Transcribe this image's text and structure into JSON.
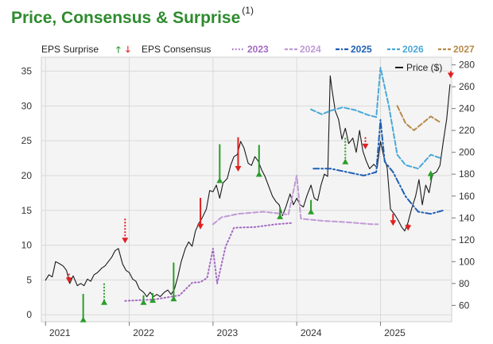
{
  "title": "Price, Consensus & Surprise",
  "title_note": "(1)",
  "colors": {
    "title": "#2e8b2e",
    "price": "#1a1a1a",
    "surprise_up": "#2a9d2a",
    "surprise_down": "#e02020",
    "c2023": "#a36ac2",
    "c2024": "#c09ad6",
    "c2025": "#1f5fb4",
    "c2026": "#4aa8d8",
    "c2027": "#b88a4a",
    "plot_bg": "#f4f4f4",
    "grid": "#d9d9d9"
  },
  "chart_data": {
    "type": "line",
    "x_tick_labels": [
      "2021",
      "2022",
      "2023",
      "2024",
      "2025"
    ],
    "left_axis": {
      "ylim": [
        -1,
        37
      ],
      "ticks": [
        "0",
        "5",
        "10",
        "15",
        "20",
        "25",
        "30",
        "35"
      ]
    },
    "right_axis": {
      "label": "Price ($)",
      "ylim": [
        45,
        287
      ],
      "ticks": [
        "60",
        "80",
        "100",
        "120",
        "140",
        "160",
        "180",
        "200",
        "220",
        "240",
        "260",
        "280"
      ]
    },
    "xlim": [
      2020.95,
      2025.85
    ],
    "legend": {
      "surprise_label": "EPS Surprise",
      "consensus_label": "EPS Consensus",
      "up_glyph": "🡑",
      "down_glyph": "🡓",
      "price_label": "Price ($)",
      "position": "top"
    },
    "grid": true,
    "series": [
      {
        "name": "Price ($)",
        "axis": "right",
        "style": "solid",
        "color_key": "price",
        "points": [
          [
            2021.0,
            83
          ],
          [
            2021.04,
            88
          ],
          [
            2021.08,
            86
          ],
          [
            2021.12,
            100
          ],
          [
            2021.17,
            98
          ],
          [
            2021.21,
            96
          ],
          [
            2021.25,
            92
          ],
          [
            2021.29,
            80
          ],
          [
            2021.33,
            87
          ],
          [
            2021.38,
            78
          ],
          [
            2021.42,
            80
          ],
          [
            2021.46,
            78
          ],
          [
            2021.5,
            84
          ],
          [
            2021.54,
            82
          ],
          [
            2021.58,
            88
          ],
          [
            2021.62,
            90
          ],
          [
            2021.67,
            94
          ],
          [
            2021.71,
            96
          ],
          [
            2021.75,
            100
          ],
          [
            2021.79,
            104
          ],
          [
            2021.83,
            110
          ],
          [
            2021.87,
            112
          ],
          [
            2021.92,
            98
          ],
          [
            2021.96,
            92
          ],
          [
            2022.0,
            90
          ],
          [
            2022.04,
            84
          ],
          [
            2022.08,
            82
          ],
          [
            2022.12,
            75
          ],
          [
            2022.17,
            72
          ],
          [
            2022.21,
            68
          ],
          [
            2022.25,
            72
          ],
          [
            2022.29,
            68
          ],
          [
            2022.33,
            70
          ],
          [
            2022.37,
            68
          ],
          [
            2022.42,
            72
          ],
          [
            2022.46,
            74
          ],
          [
            2022.5,
            70
          ],
          [
            2022.54,
            75
          ],
          [
            2022.58,
            86
          ],
          [
            2022.62,
            100
          ],
          [
            2022.67,
            112
          ],
          [
            2022.71,
            118
          ],
          [
            2022.75,
            114
          ],
          [
            2022.79,
            128
          ],
          [
            2022.83,
            135
          ],
          [
            2022.87,
            140
          ],
          [
            2022.92,
            148
          ],
          [
            2022.96,
            165
          ],
          [
            2023.0,
            164
          ],
          [
            2023.04,
            170
          ],
          [
            2023.08,
            158
          ],
          [
            2023.12,
            172
          ],
          [
            2023.17,
            176
          ],
          [
            2023.21,
            188
          ],
          [
            2023.25,
            196
          ],
          [
            2023.29,
            198
          ],
          [
            2023.33,
            210
          ],
          [
            2023.37,
            204
          ],
          [
            2023.42,
            190
          ],
          [
            2023.46,
            188
          ],
          [
            2023.5,
            196
          ],
          [
            2023.54,
            192
          ],
          [
            2023.58,
            184
          ],
          [
            2023.62,
            178
          ],
          [
            2023.67,
            168
          ],
          [
            2023.71,
            160
          ],
          [
            2023.75,
            155
          ],
          [
            2023.79,
            152
          ],
          [
            2023.83,
            142
          ],
          [
            2023.87,
            150
          ],
          [
            2023.92,
            162
          ],
          [
            2023.96,
            152
          ],
          [
            2024.0,
            158
          ],
          [
            2024.04,
            152
          ],
          [
            2024.08,
            150
          ],
          [
            2024.12,
            160
          ],
          [
            2024.17,
            170
          ],
          [
            2024.21,
            158
          ],
          [
            2024.25,
            156
          ],
          [
            2024.29,
            170
          ],
          [
            2024.33,
            180
          ],
          [
            2024.37,
            178
          ],
          [
            2024.4,
            270
          ],
          [
            2024.42,
            258
          ],
          [
            2024.46,
            238
          ],
          [
            2024.5,
            230
          ],
          [
            2024.54,
            212
          ],
          [
            2024.58,
            222
          ],
          [
            2024.62,
            208
          ],
          [
            2024.67,
            213
          ],
          [
            2024.71,
            200
          ],
          [
            2024.75,
            220
          ],
          [
            2024.79,
            201
          ],
          [
            2024.83,
            192
          ],
          [
            2024.87,
            185
          ],
          [
            2024.92,
            189
          ],
          [
            2024.96,
            186
          ],
          [
            2025.0,
            210
          ],
          [
            2025.04,
            196
          ],
          [
            2025.08,
            186
          ],
          [
            2025.12,
            148
          ],
          [
            2025.17,
            143
          ],
          [
            2025.21,
            138
          ],
          [
            2025.25,
            132
          ],
          [
            2025.29,
            128
          ],
          [
            2025.33,
            136
          ],
          [
            2025.37,
            148
          ],
          [
            2025.42,
            160
          ],
          [
            2025.46,
            175
          ],
          [
            2025.5,
            152
          ],
          [
            2025.54,
            170
          ],
          [
            2025.58,
            163
          ],
          [
            2025.62,
            180
          ],
          [
            2025.67,
            182
          ],
          [
            2025.71,
            188
          ],
          [
            2025.75,
            210
          ],
          [
            2025.79,
            230
          ],
          [
            2025.83,
            262
          ]
        ]
      },
      {
        "name": "2023",
        "axis": "left",
        "style": "dotted",
        "color_key": "c2023",
        "points": [
          [
            2021.95,
            2
          ],
          [
            2022.3,
            2.2
          ],
          [
            2022.6,
            2.8
          ],
          [
            2022.75,
            4.6
          ],
          [
            2022.85,
            4.7
          ],
          [
            2022.93,
            5.3
          ],
          [
            2023.0,
            9.5
          ],
          [
            2023.05,
            4.5
          ],
          [
            2023.15,
            9.8
          ],
          [
            2023.25,
            12.5
          ],
          [
            2023.5,
            12.6
          ],
          [
            2023.75,
            13
          ],
          [
            2023.95,
            13.2
          ]
        ]
      },
      {
        "name": "2024",
        "axis": "left",
        "style": "dashed",
        "color_key": "c2024",
        "points": [
          [
            2023.0,
            13
          ],
          [
            2023.1,
            14
          ],
          [
            2023.3,
            14.5
          ],
          [
            2023.6,
            14.8
          ],
          [
            2023.9,
            14.4
          ],
          [
            2024.0,
            20
          ],
          [
            2024.05,
            13.8
          ],
          [
            2024.3,
            13.5
          ],
          [
            2024.6,
            13.3
          ],
          [
            2024.9,
            13
          ],
          [
            2024.97,
            13
          ]
        ]
      },
      {
        "name": "2025",
        "axis": "left",
        "style": "dashdot",
        "color_key": "c2025",
        "points": [
          [
            2024.2,
            21
          ],
          [
            2024.4,
            21
          ],
          [
            2024.6,
            20.5
          ],
          [
            2024.8,
            20
          ],
          [
            2024.95,
            20.5
          ],
          [
            2025.0,
            28
          ],
          [
            2025.05,
            22
          ],
          [
            2025.15,
            20.5
          ],
          [
            2025.3,
            17
          ],
          [
            2025.45,
            14.8
          ],
          [
            2025.6,
            14.5
          ],
          [
            2025.75,
            15
          ]
        ]
      },
      {
        "name": "2026",
        "axis": "left",
        "style": "dashed",
        "color_key": "c2026",
        "points": [
          [
            2024.17,
            29.5
          ],
          [
            2024.3,
            28.8
          ],
          [
            2024.4,
            29.3
          ],
          [
            2024.55,
            29.8
          ],
          [
            2024.7,
            29.4
          ],
          [
            2024.85,
            28.7
          ],
          [
            2024.95,
            28.4
          ],
          [
            2025.0,
            35.5
          ],
          [
            2025.1,
            30
          ],
          [
            2025.2,
            23
          ],
          [
            2025.3,
            21.5
          ],
          [
            2025.45,
            21
          ],
          [
            2025.6,
            23
          ],
          [
            2025.72,
            22.5
          ]
        ]
      },
      {
        "name": "2027",
        "axis": "left",
        "style": "dashed",
        "color_key": "c2027",
        "points": [
          [
            2025.2,
            30
          ],
          [
            2025.3,
            27.5
          ],
          [
            2025.4,
            26.5
          ],
          [
            2025.5,
            27.5
          ],
          [
            2025.6,
            28.5
          ],
          [
            2025.72,
            27.6
          ]
        ]
      }
    ],
    "surprises": [
      {
        "x": 2021.28,
        "from": 5.9,
        "to": 4.8,
        "dir": "down",
        "style": "dotted"
      },
      {
        "x": 2021.45,
        "from": 3.0,
        "to": -0.5,
        "dir": "up",
        "style": "solid"
      },
      {
        "x": 2021.7,
        "from": 4.5,
        "to": 2.0,
        "dir": "up",
        "style": "dotted"
      },
      {
        "x": 2021.95,
        "from": 13.8,
        "to": 10.5,
        "dir": "down",
        "style": "dotted"
      },
      {
        "x": 2022.17,
        "from": 2.8,
        "to": 2.0,
        "dir": "up",
        "style": "solid"
      },
      {
        "x": 2022.28,
        "from": 3.1,
        "to": 2.3,
        "dir": "up",
        "style": "solid"
      },
      {
        "x": 2022.53,
        "from": 7.5,
        "to": 2.5,
        "dir": "up",
        "style": "solid"
      },
      {
        "x": 2022.85,
        "from": 16.8,
        "to": 12.5,
        "dir": "down",
        "style": "solid"
      },
      {
        "x": 2023.08,
        "from": 24.5,
        "to": 19.5,
        "dir": "up",
        "style": "solid"
      },
      {
        "x": 2023.3,
        "from": 25.5,
        "to": 20.8,
        "dir": "down",
        "style": "solid"
      },
      {
        "x": 2023.55,
        "from": 24.4,
        "to": 20.4,
        "dir": "up",
        "style": "solid"
      },
      {
        "x": 2023.8,
        "from": 15.3,
        "to": 14.3,
        "dir": "up",
        "style": "solid"
      },
      {
        "x": 2024.17,
        "from": 16.5,
        "to": 15.0,
        "dir": "up",
        "style": "solid"
      },
      {
        "x": 2024.58,
        "from": 25.4,
        "to": 22.2,
        "dir": "up",
        "style": "dotted"
      },
      {
        "x": 2024.82,
        "from": 25.5,
        "to": 24.0,
        "dir": "down",
        "style": "dotted"
      },
      {
        "x": 2025.15,
        "from": 14.5,
        "to": 13.0,
        "dir": "down",
        "style": "solid"
      },
      {
        "x": 2025.33,
        "from": 13.0,
        "to": 12.3,
        "dir": "down",
        "style": "solid"
      },
      {
        "x": 2025.6,
        "from": 19.3,
        "to": 20.5,
        "dir": "up",
        "style": "solid"
      },
      {
        "x": 2025.84,
        "from": 35.0,
        "to": 34.2,
        "dir": "down",
        "style": "solid"
      }
    ]
  }
}
